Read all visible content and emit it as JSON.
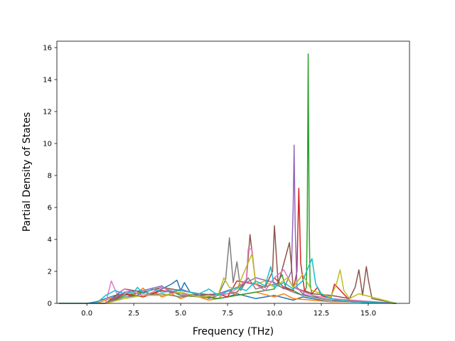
{
  "chart_data": {
    "type": "line",
    "title": "",
    "xlabel": "Frequency (THz)",
    "ylabel": "Partial Density of States",
    "xlim": [
      -1.6,
      17.2
    ],
    "ylim": [
      0,
      16.4
    ],
    "xticks": [
      0.0,
      2.5,
      5.0,
      7.5,
      10.0,
      12.5,
      15.0
    ],
    "xtick_labels": [
      "0.0",
      "2.5",
      "5.0",
      "7.5",
      "10.0",
      "12.5",
      "15.0"
    ],
    "yticks": [
      0,
      2,
      4,
      6,
      8,
      10,
      12,
      14,
      16
    ],
    "ytick_labels": [
      "0",
      "2",
      "4",
      "6",
      "8",
      "10",
      "12",
      "14",
      "16"
    ],
    "grid": false,
    "legend": "none",
    "colors": [
      "#1f77b4",
      "#ff7f0e",
      "#2ca02c",
      "#d62728",
      "#9467bd",
      "#8c564b",
      "#e377c2",
      "#7f7f7f",
      "#bcbd22",
      "#17becf"
    ],
    "series": [
      {
        "color": "#1f77b4",
        "x": [
          -1.5,
          0.0,
          0.5,
          1.0,
          1.5,
          2.0,
          2.5,
          3.0,
          3.5,
          4.0,
          4.5,
          4.8,
          5.0,
          5.2,
          5.5,
          6.0,
          7.0,
          7.5,
          8.0,
          9.0,
          10.0,
          11.0,
          11.5,
          12.0,
          12.5,
          13.0,
          14.0,
          15.0,
          16.5
        ],
        "y": [
          0,
          0,
          0.1,
          0.3,
          0.5,
          0.6,
          0.4,
          0.7,
          0.6,
          0.9,
          1.2,
          1.45,
          0.8,
          1.3,
          0.7,
          0.5,
          0.3,
          0.4,
          0.6,
          0.3,
          0.5,
          0.2,
          0.4,
          0.3,
          0.2,
          0.1,
          0.2,
          0.1,
          0
        ]
      },
      {
        "color": "#ff7f0e",
        "x": [
          -1.5,
          0.5,
          1.0,
          1.5,
          2.0,
          2.5,
          3.0,
          3.3,
          3.6,
          4.0,
          4.5,
          5.0,
          5.5,
          6.0,
          6.5,
          7.0,
          7.5,
          8.0,
          9.0,
          10.0,
          10.5,
          11.0,
          12.0,
          13.0,
          14.0,
          16.5
        ],
        "y": [
          0,
          0,
          0.2,
          0.4,
          0.6,
          0.5,
          0.95,
          0.5,
          0.7,
          0.4,
          0.6,
          0.3,
          0.5,
          0.4,
          0.2,
          0.3,
          0.8,
          0.5,
          0.7,
          0.4,
          0.6,
          0.3,
          0.2,
          0.1,
          0.1,
          0
        ]
      },
      {
        "color": "#2ca02c",
        "x": [
          -1.5,
          1.0,
          2.0,
          3.0,
          4.0,
          5.0,
          6.0,
          7.0,
          8.0,
          9.0,
          10.0,
          10.4,
          10.6,
          11.0,
          11.5,
          11.7,
          11.75,
          11.8,
          11.85,
          11.9,
          12.0,
          12.5,
          13.0,
          14.0,
          16.5
        ],
        "y": [
          0,
          0,
          0.5,
          0.7,
          1.0,
          0.5,
          0.4,
          0.3,
          0.5,
          0.7,
          0.9,
          1.8,
          1.0,
          0.8,
          0.5,
          1.0,
          5.0,
          15.6,
          5.0,
          1.2,
          0.5,
          0.3,
          0.2,
          0.1,
          0
        ]
      },
      {
        "color": "#d62728",
        "x": [
          -1.5,
          1.0,
          2.0,
          3.0,
          4.0,
          5.0,
          6.0,
          7.0,
          7.5,
          8.0,
          9.0,
          9.5,
          10.0,
          10.5,
          11.0,
          11.2,
          11.3,
          11.4,
          11.6,
          12.0,
          12.3,
          12.5,
          13.0,
          13.2,
          14.0,
          16.5
        ],
        "y": [
          0,
          0,
          0.6,
          0.4,
          0.8,
          0.6,
          0.5,
          0.6,
          0.4,
          1.4,
          1.2,
          0.8,
          1.6,
          1.0,
          0.8,
          2.0,
          7.2,
          2.5,
          0.8,
          0.6,
          1.0,
          0.5,
          0.3,
          1.2,
          0.2,
          0
        ]
      },
      {
        "color": "#9467bd",
        "x": [
          -1.5,
          1.0,
          2.0,
          3.0,
          4.0,
          4.5,
          5.0,
          6.0,
          7.0,
          8.0,
          9.0,
          10.0,
          10.5,
          10.9,
          11.0,
          11.05,
          11.1,
          11.2,
          11.5,
          12.0,
          13.0,
          14.0,
          16.5
        ],
        "y": [
          0,
          0,
          0.7,
          0.8,
          1.1,
          0.6,
          0.9,
          0.5,
          0.6,
          1.0,
          1.6,
          1.3,
          0.9,
          2.0,
          6.0,
          9.9,
          5.0,
          1.0,
          0.6,
          0.4,
          0.2,
          0.1,
          0
        ]
      },
      {
        "color": "#8c564b",
        "x": [
          -1.5,
          1.0,
          2.0,
          3.0,
          4.0,
          5.0,
          6.0,
          7.0,
          8.0,
          8.5,
          8.7,
          9.0,
          9.5,
          9.9,
          10.0,
          10.2,
          10.8,
          11.0,
          11.5,
          12.0,
          13.0,
          14.0,
          14.3,
          14.5,
          14.7,
          14.9,
          15.0,
          15.2,
          16.5
        ],
        "y": [
          0,
          0,
          0.9,
          0.7,
          1.0,
          0.8,
          0.6,
          0.5,
          0.7,
          1.4,
          4.3,
          1.2,
          1.0,
          2.0,
          4.85,
          1.2,
          3.8,
          1.0,
          0.8,
          0.6,
          0.5,
          0.3,
          1.0,
          2.1,
          0.5,
          2.3,
          1.5,
          0.3,
          0
        ]
      },
      {
        "color": "#e377c2",
        "x": [
          -1.5,
          1.0,
          1.3,
          1.6,
          2.0,
          3.0,
          3.5,
          4.0,
          5.0,
          6.0,
          7.0,
          7.5,
          8.0,
          8.5,
          8.6,
          8.8,
          9.0,
          9.5,
          10.0,
          10.5,
          11.0,
          12.0,
          13.0,
          16.5
        ],
        "y": [
          0,
          0,
          1.4,
          0.6,
          0.9,
          0.5,
          0.7,
          1.0,
          0.6,
          0.4,
          0.5,
          0.6,
          0.9,
          1.5,
          3.4,
          3.4,
          1.2,
          0.8,
          1.6,
          2.1,
          1.0,
          0.5,
          0.3,
          0
        ]
      },
      {
        "color": "#7f7f7f",
        "x": [
          -1.5,
          1.0,
          2.0,
          3.0,
          4.0,
          5.0,
          6.0,
          6.5,
          7.0,
          7.4,
          7.6,
          7.8,
          8.0,
          8.2,
          8.6,
          9.0,
          10.0,
          11.0,
          11.5,
          12.0,
          13.0,
          16.5
        ],
        "y": [
          0,
          0,
          0.4,
          0.5,
          0.6,
          0.4,
          0.6,
          0.3,
          0.5,
          1.5,
          4.1,
          1.3,
          2.6,
          0.8,
          1.6,
          0.9,
          1.2,
          0.7,
          0.5,
          0.4,
          0.2,
          0
        ]
      },
      {
        "color": "#bcbd22",
        "x": [
          -1.5,
          1.0,
          2.0,
          3.0,
          4.0,
          5.0,
          6.0,
          7.0,
          7.3,
          7.6,
          8.0,
          8.8,
          9.0,
          9.5,
          10.0,
          10.7,
          11.0,
          11.5,
          12.0,
          12.5,
          13.0,
          13.3,
          13.5,
          13.7,
          14.0,
          14.5,
          16.5
        ],
        "y": [
          0,
          0,
          0.3,
          0.5,
          0.5,
          0.7,
          0.4,
          0.5,
          1.6,
          1.0,
          0.9,
          3.1,
          1.2,
          1.4,
          1.0,
          1.6,
          1.0,
          1.8,
          0.8,
          0.6,
          0.4,
          1.2,
          2.1,
          0.8,
          0.3,
          0.6,
          0
        ]
      },
      {
        "color": "#17becf",
        "x": [
          -1.5,
          0.5,
          1.0,
          1.5,
          2.0,
          2.5,
          2.7,
          3.0,
          3.5,
          4.0,
          5.0,
          6.0,
          6.5,
          7.0,
          8.0,
          8.5,
          9.0,
          9.5,
          9.8,
          10.0,
          10.5,
          11.0,
          11.5,
          12.0,
          12.2,
          12.5,
          13.0,
          14.0,
          16.5
        ],
        "y": [
          0,
          0,
          0.5,
          0.8,
          0.6,
          0.7,
          1.0,
          0.6,
          0.9,
          0.7,
          0.8,
          0.6,
          0.9,
          0.5,
          1.0,
          0.8,
          1.4,
          1.1,
          2.3,
          1.0,
          1.3,
          0.9,
          1.4,
          2.8,
          1.2,
          0.6,
          0.3,
          0.1,
          0
        ]
      }
    ]
  }
}
